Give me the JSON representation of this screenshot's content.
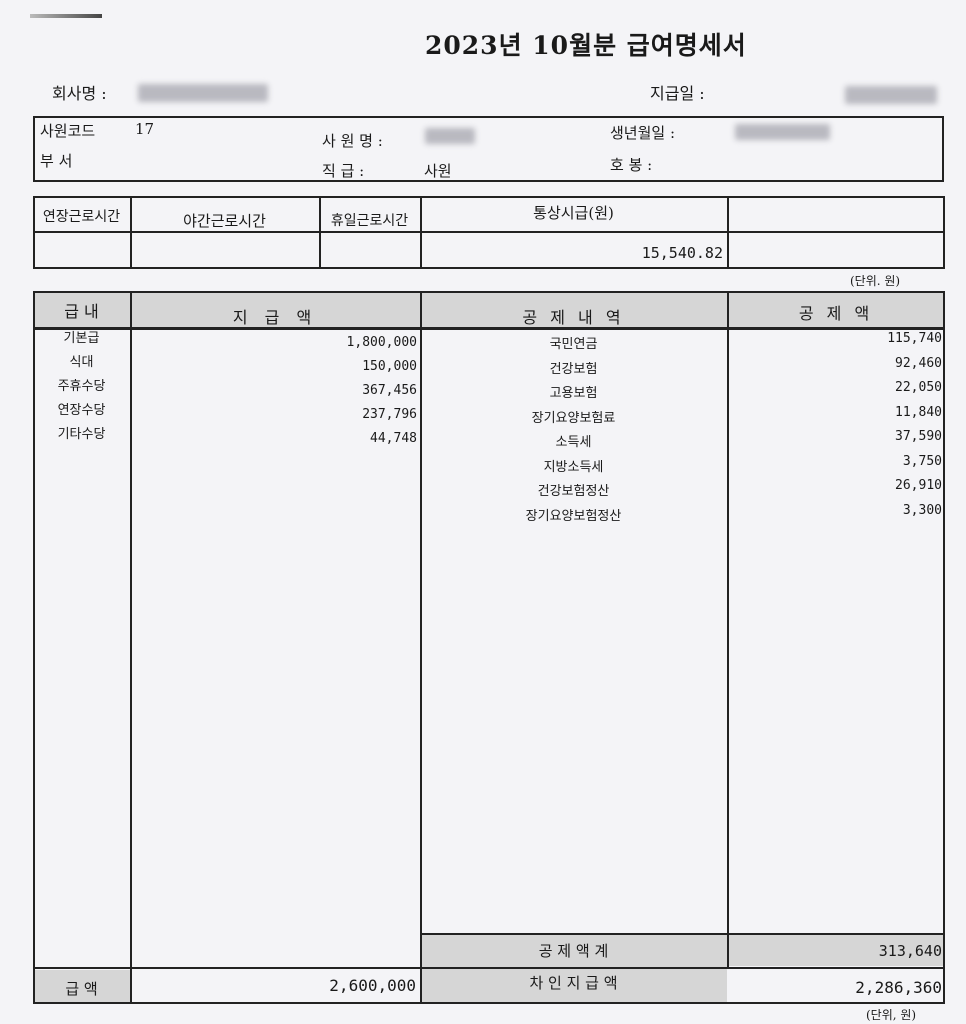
{
  "title": "2023년 10월분 급여명세서",
  "header": {
    "company_label": "회사명 :",
    "pay_date_label": "지급일 :"
  },
  "employee": {
    "code_label": "사원코드",
    "code": "17",
    "name_label": "사 원 명 :",
    "birth_label": "생년월일 :",
    "dept_label": "부    서",
    "rank_label": "직    급 :",
    "rank": "사원",
    "step_label": "호    봉 :"
  },
  "hours": {
    "headers": [
      "연장근로시간",
      "야간근로시간",
      "휴일근로시간",
      "통상시급(원)",
      ""
    ],
    "hourly_wage": "15,540.82"
  },
  "unit_label": "(단위. 원)",
  "table": {
    "headers": [
      "급 내",
      "지 급 액",
      "공 제 내 역",
      "공 제 액"
    ],
    "payments": [
      {
        "label": "기본급",
        "amount": "1,800,000"
      },
      {
        "label": "식대",
        "amount": "150,000"
      },
      {
        "label": "주휴수당",
        "amount": "367,456"
      },
      {
        "label": "연장수당",
        "amount": "237,796"
      },
      {
        "label": "기타수당",
        "amount": "44,748"
      }
    ],
    "deductions": [
      {
        "label": "국민연금",
        "amount": "115,740"
      },
      {
        "label": "건강보험",
        "amount": "92,460"
      },
      {
        "label": "고용보험",
        "amount": "22,050"
      },
      {
        "label": "장기요양보험료",
        "amount": "11,840"
      },
      {
        "label": "소득세",
        "amount": "37,590"
      },
      {
        "label": "지방소득세",
        "amount": "3,750"
      },
      {
        "label": "건강보험정산",
        "amount": "26,910"
      },
      {
        "label": "장기요양보험정산",
        "amount": "3,300"
      }
    ],
    "deduction_total_label": "공 제 액 계",
    "deduction_total": "313,640",
    "gross_label": "급 액",
    "gross": "2,600,000",
    "net_label": "차 인 지 급 액",
    "net": "2,286,360"
  },
  "footer_unit_label": "(단위, 원)"
}
